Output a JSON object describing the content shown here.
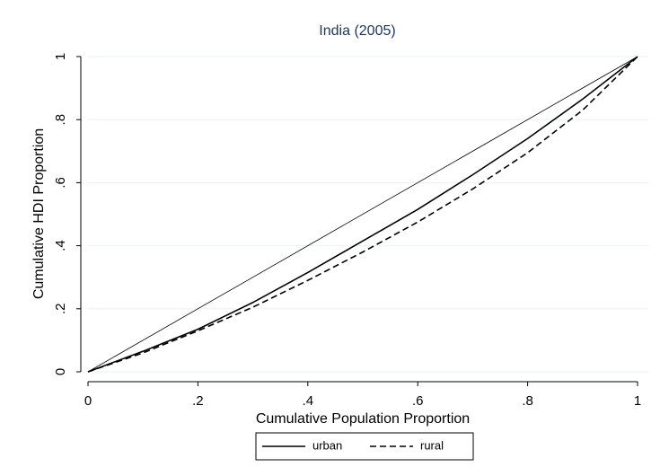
{
  "chart_data": {
    "type": "line",
    "title": "India (2005)",
    "x_label": "Cumulative Population Proportion",
    "y_label": "Cumulative HDI Proportion",
    "x": [
      0,
      0.1,
      0.2,
      0.3,
      0.4,
      0.5,
      0.6,
      0.7,
      0.8,
      0.9,
      1
    ],
    "series": [
      {
        "name": "urban",
        "color": "#000000",
        "dash": "solid",
        "values": [
          0,
          0.065,
          0.135,
          0.22,
          0.315,
          0.415,
          0.515,
          0.625,
          0.74,
          0.865,
          1
        ]
      },
      {
        "name": "rural",
        "color": "#000000",
        "dash": "dashed",
        "values": [
          0,
          0.06,
          0.13,
          0.205,
          0.29,
          0.38,
          0.475,
          0.58,
          0.695,
          0.83,
          1
        ]
      }
    ],
    "equality_line": {
      "x": [
        0,
        1
      ],
      "values": [
        0,
        1
      ]
    },
    "xlim": [
      0,
      1
    ],
    "ylim": [
      0,
      1
    ],
    "xticks": [
      0,
      {
        "value": 0.2,
        "label": ".2"
      },
      {
        "value": 0.4,
        "label": ".4"
      },
      {
        "value": 0.6,
        "label": ".6"
      },
      {
        "value": 0.8,
        "label": ".8"
      },
      1
    ],
    "yticks": [
      0,
      {
        "value": 0.2,
        "label": ".2"
      },
      {
        "value": 0.4,
        "label": ".4"
      },
      {
        "value": 0.6,
        "label": ".6"
      },
      {
        "value": 0.8,
        "label": ".8"
      },
      1
    ],
    "grid": true,
    "legend": "bottom"
  }
}
